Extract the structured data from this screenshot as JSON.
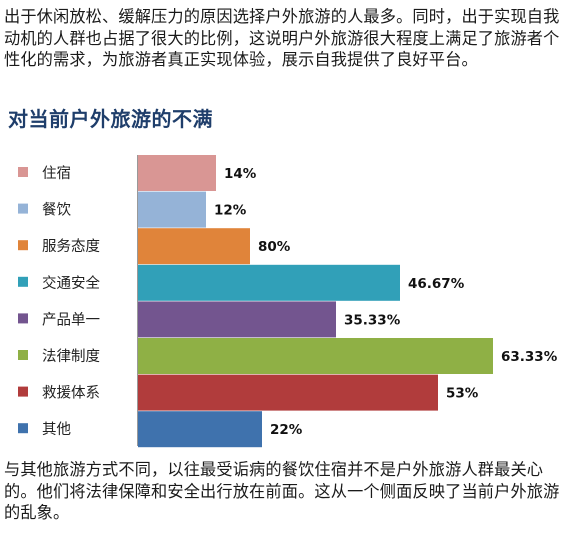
{
  "intro_text": "出于休闲放松、缓解压力的原因选择户外旅游的人最多。同时，出于实现自我动机的人群也占据了很大的比例，这说明户外旅游很大程度上满足了旅游者个性化的需求，为旅游者真正实现体验，展示自我提供了良好平台。",
  "outro_text": "与其他旅游方式不同，以往最受诟病的餐饮住宿并不是户外旅游人群最关心的。他们将法律保障和安全出行放在前面。这从一个侧面反映了当前户外旅游的乱象。",
  "chart_data": {
    "type": "bar",
    "orientation": "horizontal",
    "title": "对当前户外旅游的不满",
    "categories": [
      "住宿",
      "餐饮",
      "服务态度",
      "交通安全",
      "产品单一",
      "法律制度",
      "救援体系",
      "其他"
    ],
    "values": [
      14,
      12,
      80,
      46.67,
      35.33,
      63.33,
      53,
      22
    ],
    "value_labels": [
      "14%",
      "12%",
      "80%",
      "46.67%",
      "35.33%",
      "63.33%",
      "53%",
      "22%"
    ],
    "colors": [
      "#d99694",
      "#95b3d7",
      "#e0843a",
      "#31a0b8",
      "#73558f",
      "#8fb045",
      "#b13c3c",
      "#3f72ad"
    ],
    "legend_placement": "left",
    "grid": false
  }
}
